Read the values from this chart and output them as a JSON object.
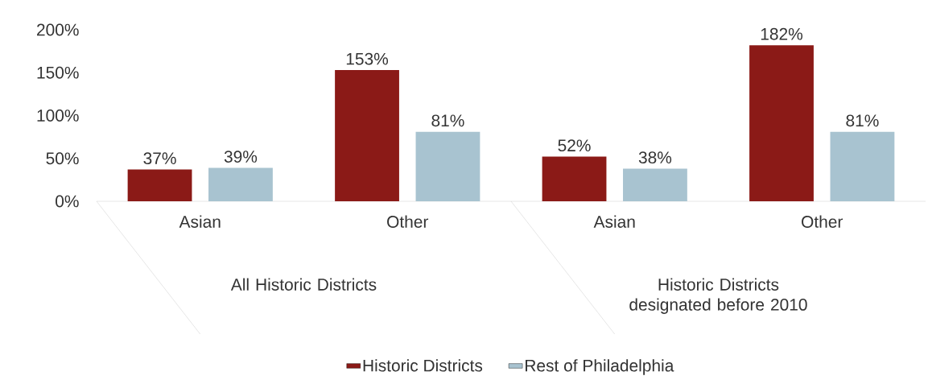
{
  "chart_data": {
    "type": "bar",
    "categories": [
      "Asian",
      "Other",
      "Asian",
      "Other"
    ],
    "series": [
      {
        "name": "Historic Districts",
        "color": "#8b1a17",
        "values": [
          37,
          153,
          52,
          182
        ],
        "value_labels": [
          "37%",
          "153%",
          "52%",
          "182%"
        ]
      },
      {
        "name": "Rest of Philadelphia",
        "color": "#a8c3d0",
        "values": [
          39,
          81,
          38,
          81
        ],
        "value_labels": [
          "39%",
          "81%",
          "38%",
          "81%"
        ]
      }
    ],
    "ylim": [
      0,
      200
    ],
    "yticks": [
      {
        "value": 0,
        "label": "0%"
      },
      {
        "value": 50,
        "label": "50%"
      },
      {
        "value": 100,
        "label": "100%"
      },
      {
        "value": 150,
        "label": "150%"
      },
      {
        "value": 200,
        "label": "200%"
      }
    ],
    "annotations": [
      "All Historic Districts",
      "Historic Districts designated before 2010"
    ],
    "legend": "bottom"
  }
}
